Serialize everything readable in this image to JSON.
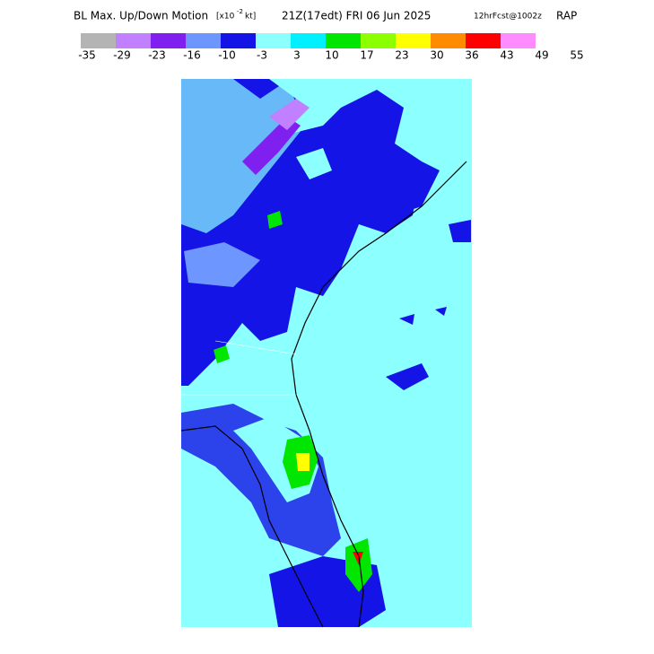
{
  "header": {
    "title": "BL Max. Up/Down Motion",
    "units_open": "[x10",
    "units_exp": "-2",
    "units_close": "kt]",
    "valid": "21Z(17edt) FRI 06 Jun 2025",
    "forecast": "12hrFcst@1002z",
    "model": "RAP"
  },
  "legend": {
    "colors": [
      "#b4b4b4",
      "#c080ff",
      "#8020f0",
      "#6e96ff",
      "#1414e6",
      "#8cffff",
      "#00f0ff",
      "#00e600",
      "#8cff00",
      "#ffff00",
      "#ff8c00",
      "#ff0000",
      "#ff8cff"
    ],
    "labels": [
      -35,
      -29,
      -23,
      -16,
      -10,
      -3,
      3,
      10,
      17,
      23,
      30,
      36,
      43,
      49,
      55
    ]
  }
}
